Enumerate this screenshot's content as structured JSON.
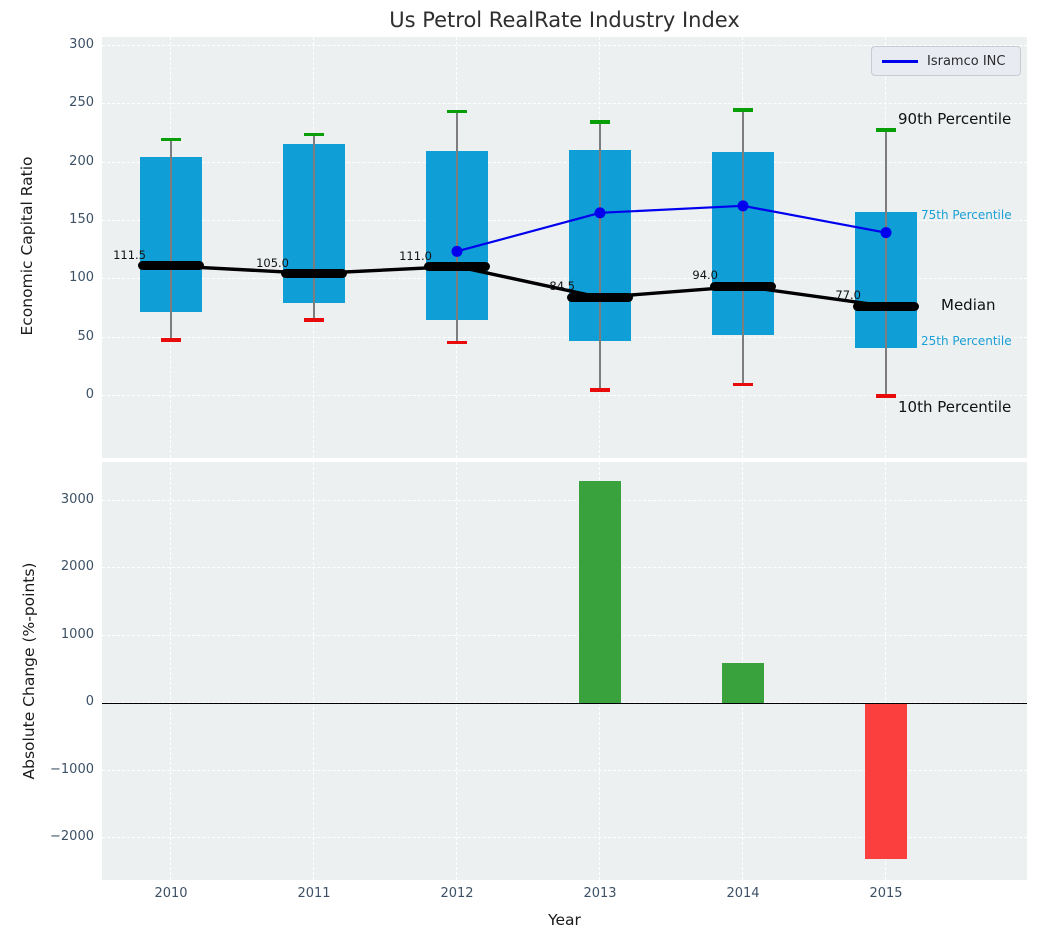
{
  "figure": {
    "background": "#ffffff",
    "plot_background": "#edf0f1",
    "grid_color": "#ffffff",
    "tick_label_color": "#3d5166",
    "annotation_color": "#111111"
  },
  "chart_data": [
    {
      "type": "box",
      "title": "Us Petrol RealRate Industry Index",
      "ylabel": "Economic Capital Ratio",
      "ylim": [
        -55,
        308
      ],
      "yticks": [
        0,
        50,
        100,
        150,
        200,
        250,
        300
      ],
      "ytick_labels": [
        "0",
        "50",
        "100",
        "150",
        "200",
        "250",
        "300"
      ],
      "categories": [
        "2010",
        "2011",
        "2012",
        "2013",
        "2014",
        "2015"
      ],
      "grid": true,
      "legend": {
        "label": "Isramco INC",
        "position": "upper right"
      },
      "colors": {
        "box": "#0f9ed5",
        "median": "#000000",
        "whisker": "#7d7d7d",
        "cap_top": "#089e08",
        "cap_bottom": "#e80b0b",
        "series_line": "#0000ee"
      },
      "boxes": [
        {
          "year": "2010",
          "p10": 48,
          "p25": 72,
          "median": 111.5,
          "p75": 205,
          "p90": 220,
          "median_label": "111.5"
        },
        {
          "year": "2011",
          "p10": 65,
          "p25": 80,
          "median": 105.0,
          "p75": 216,
          "p90": 224,
          "median_label": "105.0"
        },
        {
          "year": "2012",
          "p10": 46,
          "p25": 65,
          "median": 111.0,
          "p75": 210,
          "p90": 244,
          "median_label": "111.0"
        },
        {
          "year": "2013",
          "p10": 5,
          "p25": 47,
          "median": 84.5,
          "p75": 211,
          "p90": 235,
          "median_label": "84.5"
        },
        {
          "year": "2014",
          "p10": 10,
          "p25": 52,
          "median": 94.0,
          "p75": 209,
          "p90": 245,
          "median_label": "94.0"
        },
        {
          "year": "2015",
          "p10": 0,
          "p25": 41,
          "median": 77.0,
          "p75": 158,
          "p90": 228,
          "median_label": "77.0"
        }
      ],
      "series": [
        {
          "name": "Isramco INC",
          "color": "#0000ee",
          "points": [
            {
              "x": "2012",
              "y": 124
            },
            {
              "x": "2013",
              "y": 157
            },
            {
              "x": "2014",
              "y": 163
            },
            {
              "x": "2015",
              "y": 140
            }
          ]
        }
      ],
      "side_labels": [
        {
          "text": "90th Percentile",
          "size": "large",
          "color": "#111111",
          "anchor": "p90"
        },
        {
          "text": "75th Percentile",
          "size": "small",
          "color": "#1b9fd6",
          "anchor": "p75"
        },
        {
          "text": "Median",
          "size": "large",
          "color": "#111111",
          "anchor": "median"
        },
        {
          "text": "25th Percentile",
          "size": "small",
          "color": "#1b9fd6",
          "anchor": "p25"
        },
        {
          "text": "10th Percentile",
          "size": "large",
          "color": "#111111",
          "anchor": "p10"
        }
      ]
    },
    {
      "type": "bar",
      "xlabel": "Year",
      "ylabel": "Absolute Change (%-points)",
      "ylim": [
        -2620,
        3580
      ],
      "yticks": [
        3000,
        2000,
        1000,
        0,
        -1000,
        -2000
      ],
      "ytick_labels": [
        "3000",
        "2000",
        "1000",
        "0",
        "−1000",
        "−2000"
      ],
      "categories": [
        "2010",
        "2011",
        "2012",
        "2013",
        "2014",
        "2015"
      ],
      "values": [
        null,
        null,
        null,
        3300,
        600,
        -2300
      ],
      "bar_colors": {
        "positive": "#3aa23d",
        "negative": "#fb3e3e"
      },
      "zero_line": true,
      "grid": true
    }
  ]
}
